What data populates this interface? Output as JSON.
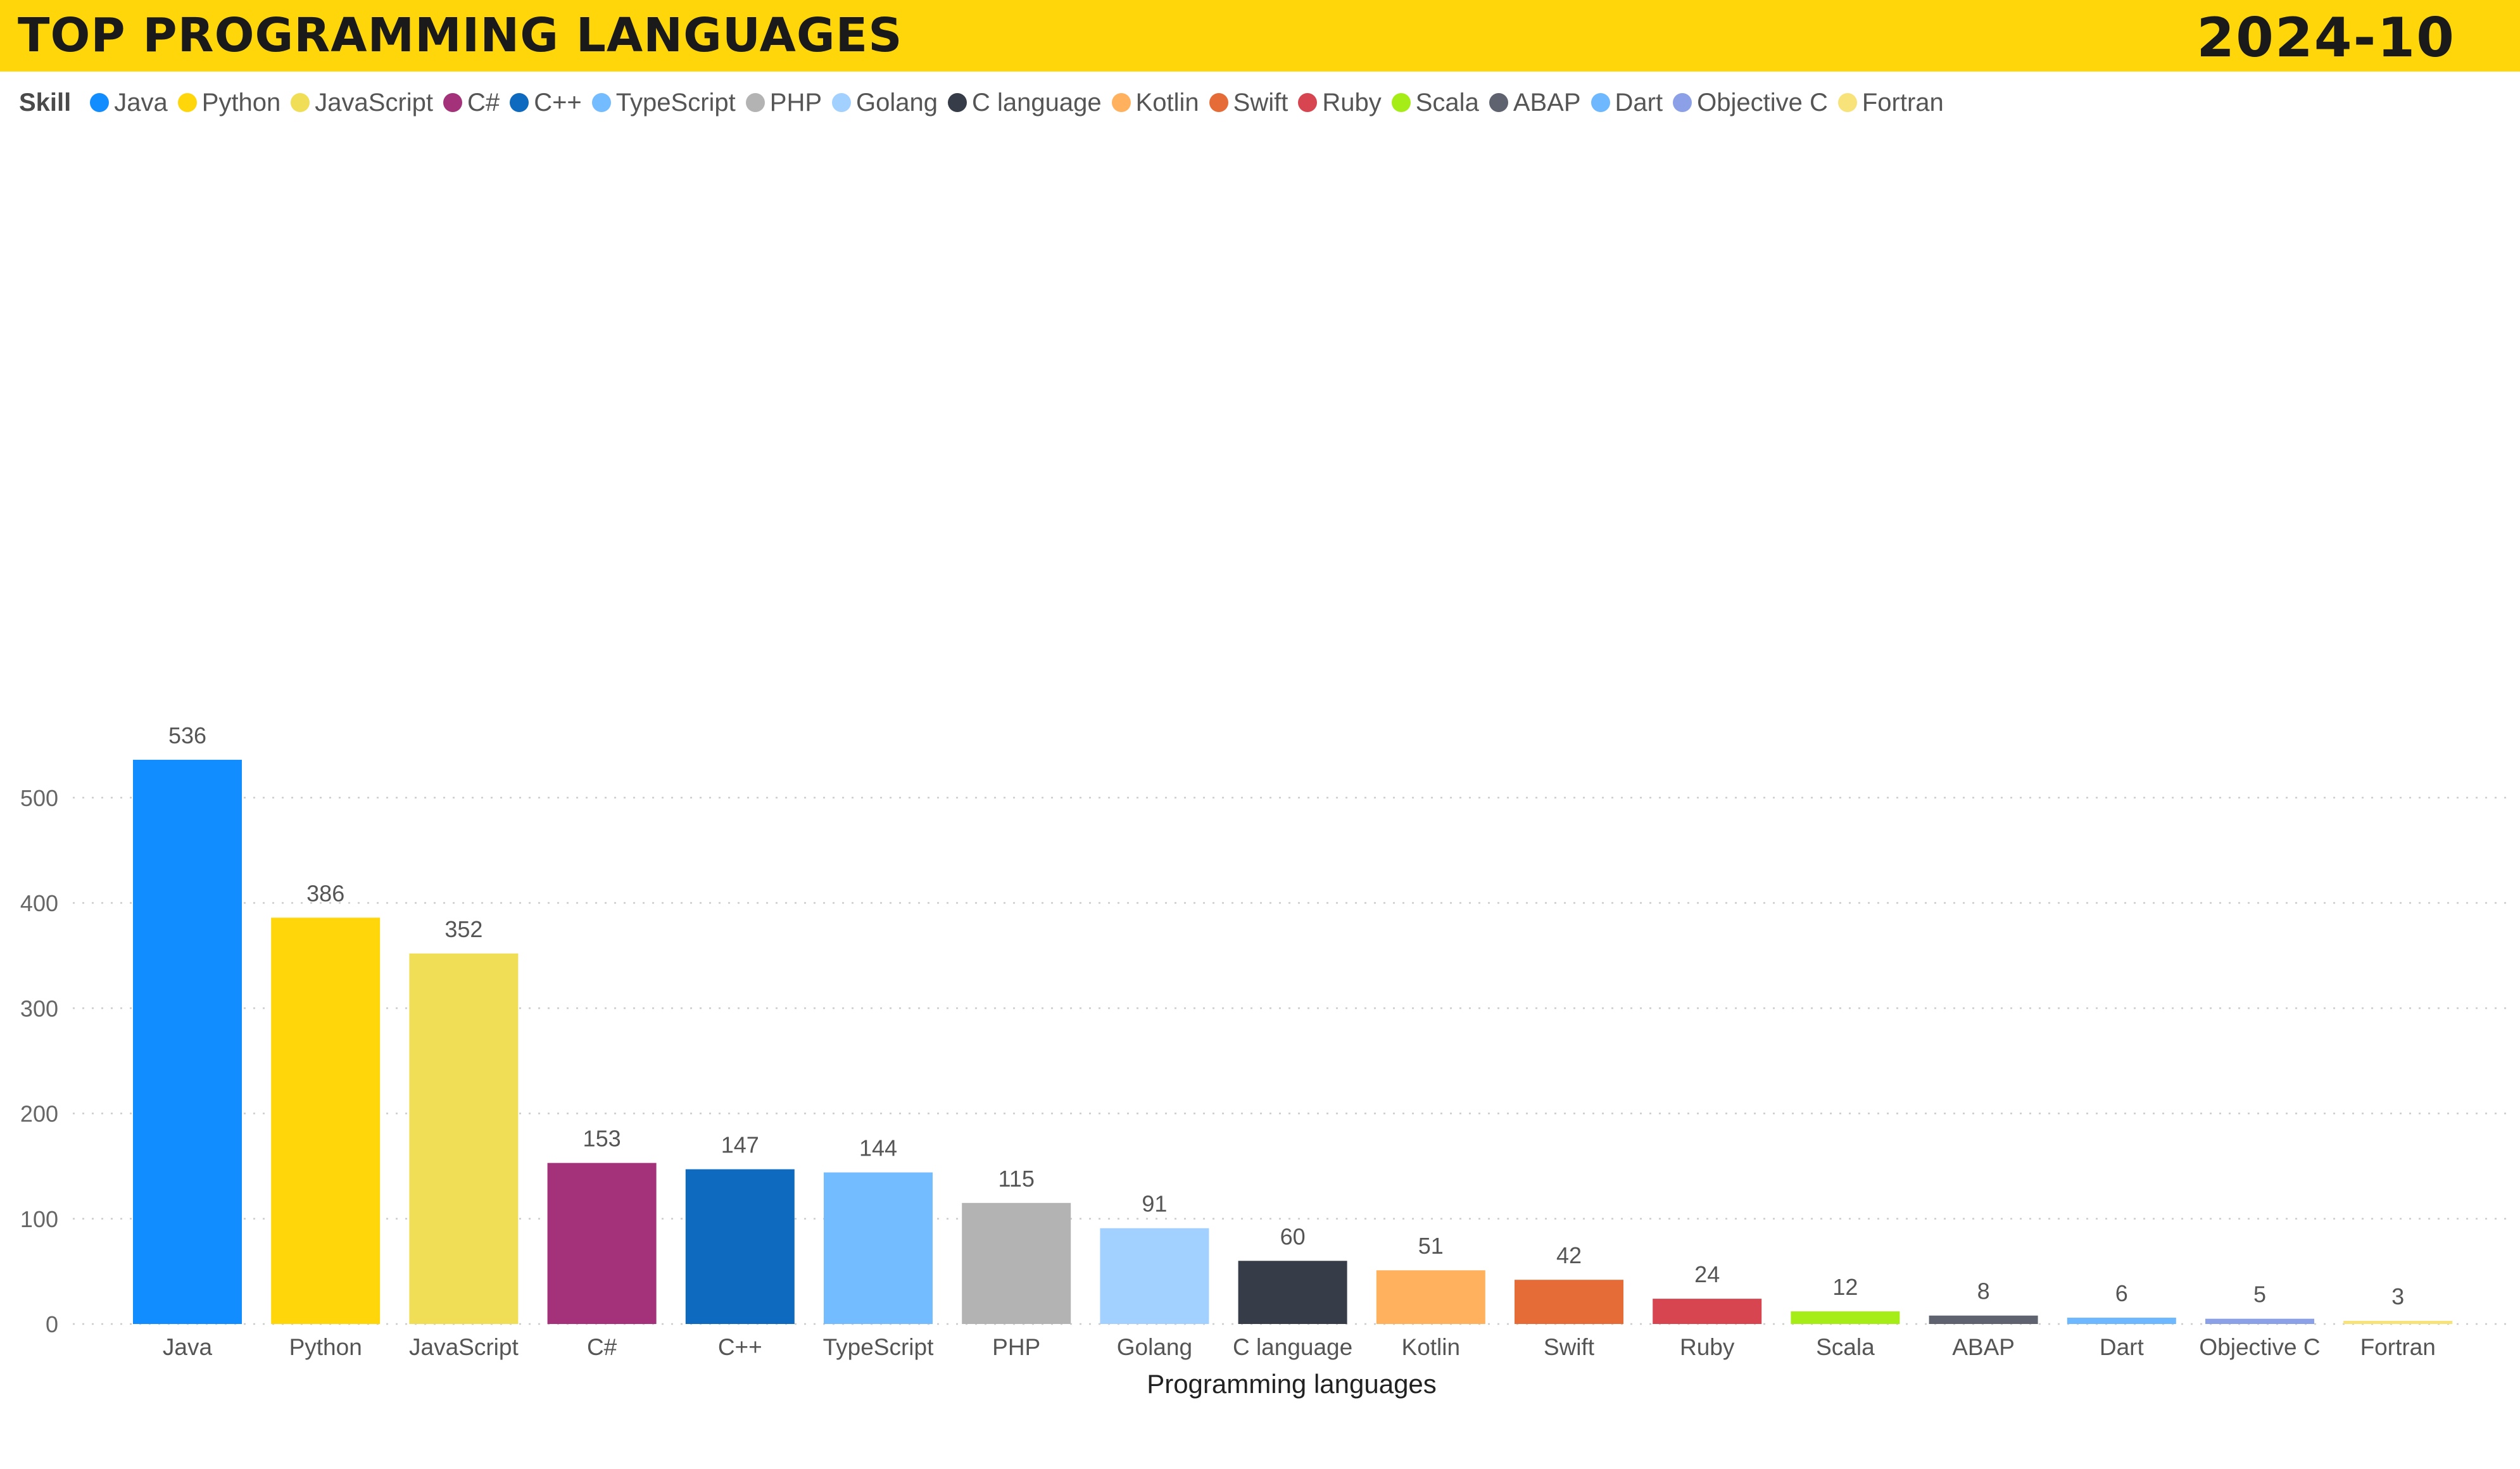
{
  "header": {
    "title": "TOP PROGRAMMING LANGUAGES",
    "period": "2024-10"
  },
  "legend": {
    "title": "Skill"
  },
  "chart_data": {
    "type": "bar",
    "title": "TOP PROGRAMMING LANGUAGES",
    "xlabel": "Programming languages",
    "ylabel": "",
    "categories": [
      "Java",
      "Python",
      "JavaScript",
      "C#",
      "C++",
      "TypeScript",
      "PHP",
      "Golang",
      "C language",
      "Kotlin",
      "Swift",
      "Ruby",
      "Scala",
      "ABAP",
      "Dart",
      "Objective C",
      "Fortran"
    ],
    "values": [
      536,
      386,
      352,
      153,
      147,
      144,
      115,
      91,
      60,
      51,
      42,
      24,
      12,
      8,
      6,
      5,
      3
    ],
    "colors": [
      "#118DFF",
      "#FFD60A",
      "#F0DE56",
      "#A4327A",
      "#0D6ABF",
      "#73BCFF",
      "#B3B3B3",
      "#A3D1FF",
      "#363D48",
      "#FFB15E",
      "#E66C37",
      "#D64550",
      "#A6ED18",
      "#5F6370",
      "#6DB8FF",
      "#8CA0E8",
      "#F8E27A"
    ],
    "ylim": [
      0,
      540
    ],
    "yticks": [
      0,
      100,
      200,
      300,
      400,
      500
    ],
    "grid": true,
    "data_labels": true,
    "legend_placement": "top-left"
  }
}
